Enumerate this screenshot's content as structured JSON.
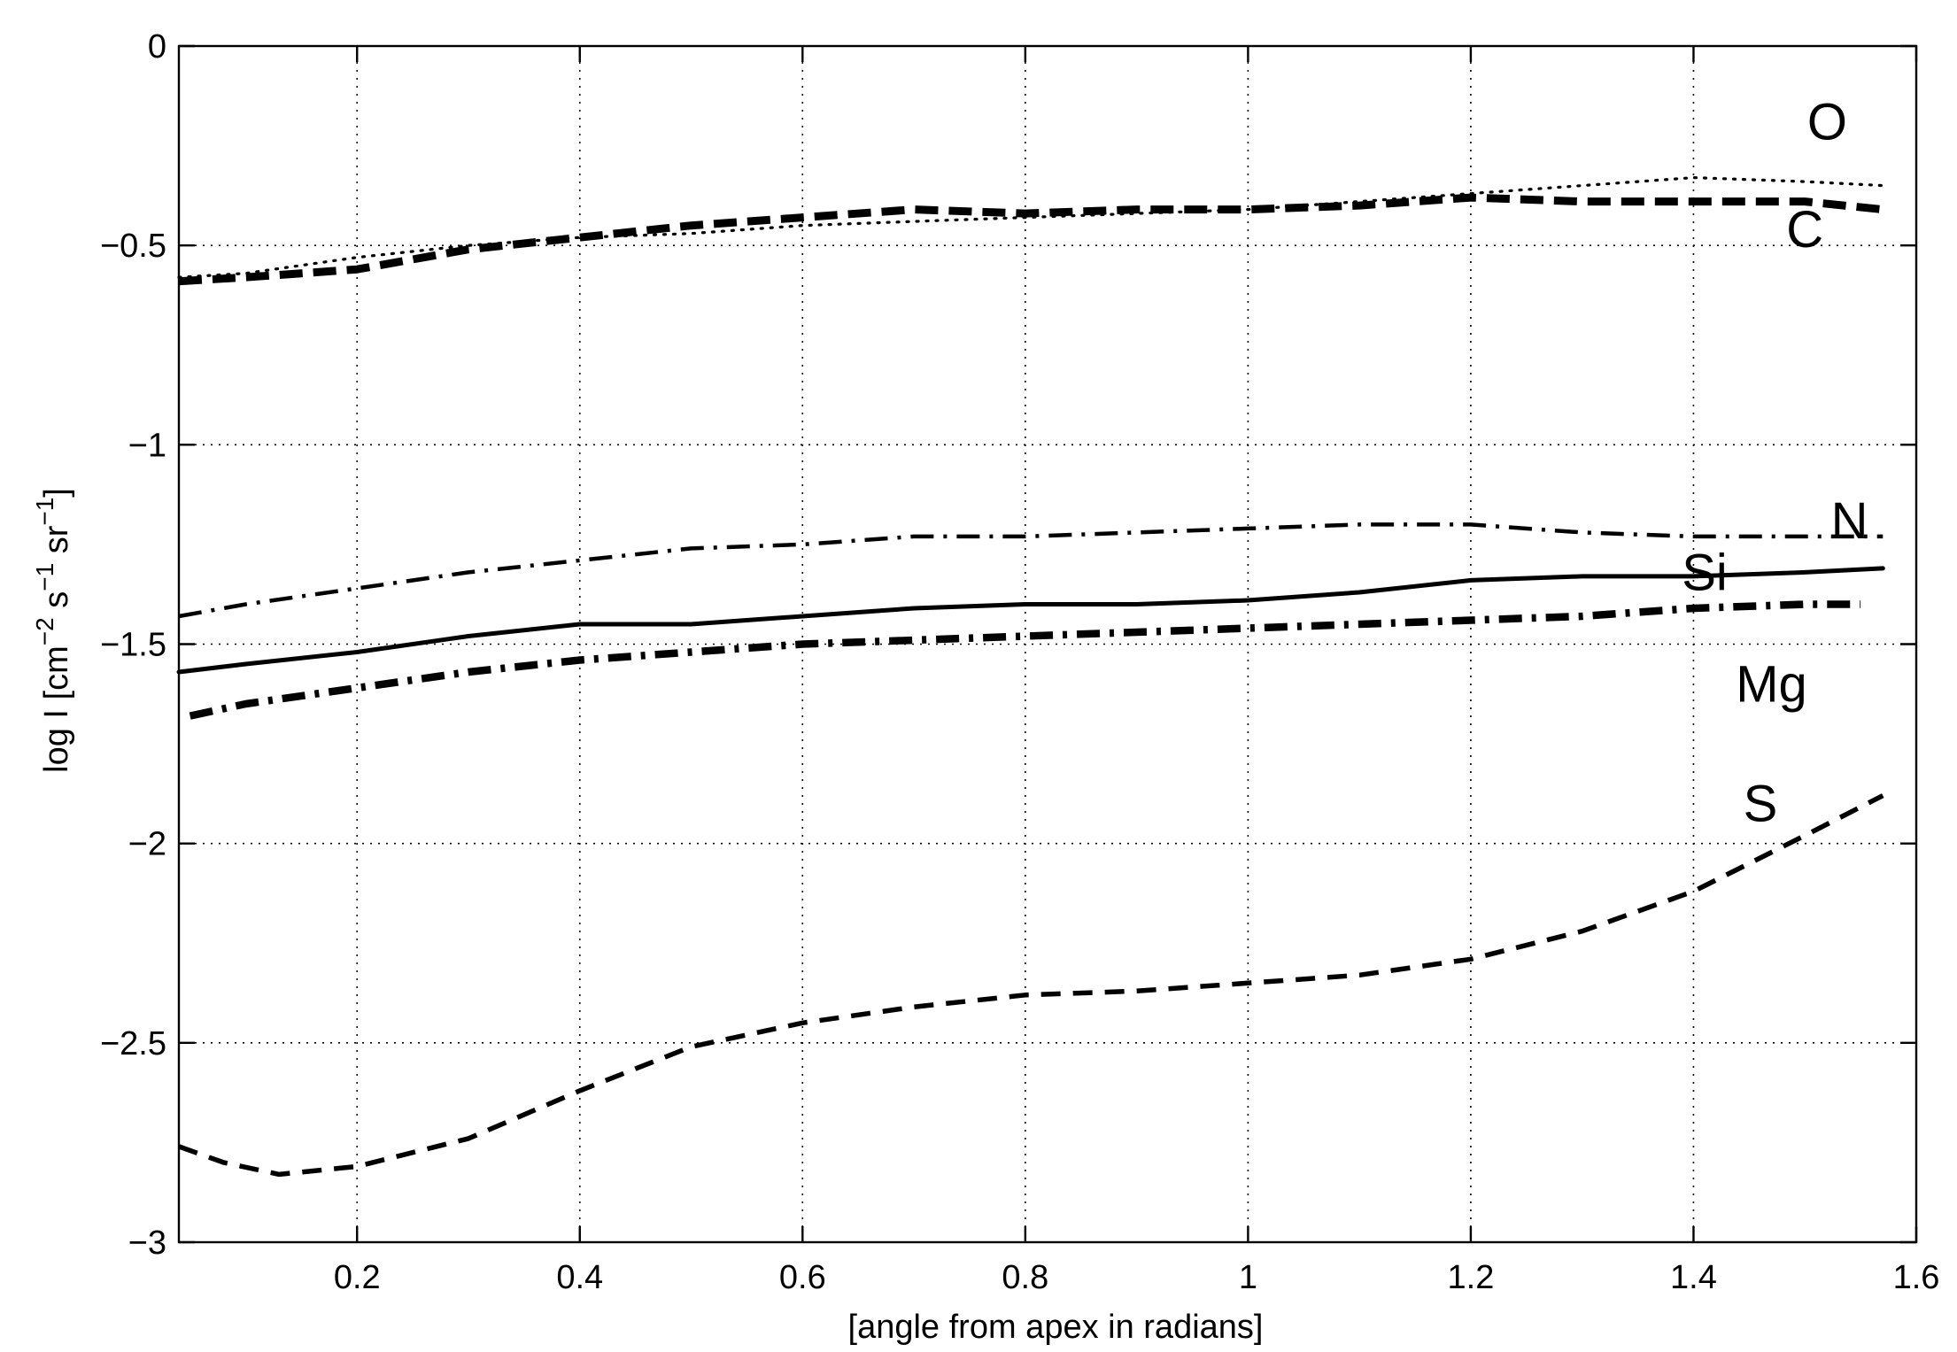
{
  "chart_data": {
    "type": "line",
    "title": "",
    "xlabel": "[angle from apex in radians]",
    "ylabel_parts": {
      "main": "log I  [cm",
      "exp1": "−2",
      "mid1": " s",
      "exp2": "−1",
      "mid2": " sr",
      "exp3": "−1",
      "end": "]"
    },
    "xlim": [
      0.04,
      1.6
    ],
    "ylim": [
      -3,
      0
    ],
    "grid": true,
    "x_ticks": [
      0.2,
      0.4,
      0.6,
      0.8,
      1,
      1.2,
      1.4,
      1.6
    ],
    "x_tick_labels": [
      "0.2",
      "0.4",
      "0.6",
      "0.8",
      "1",
      "1.2",
      "1.4",
      "1.6"
    ],
    "y_ticks": [
      0,
      -0.5,
      -1,
      -1.5,
      -2,
      -2.5,
      -3
    ],
    "y_tick_labels": [
      "0",
      "−0.5",
      "−1",
      "−1.5",
      "−2",
      "−2.5",
      "−3"
    ],
    "series": [
      {
        "name": "O",
        "style": "dotted",
        "label_at": [
          1.52,
          -0.19
        ],
        "points": [
          [
            0.04,
            -0.58
          ],
          [
            0.1,
            -0.57
          ],
          [
            0.2,
            -0.53
          ],
          [
            0.3,
            -0.5
          ],
          [
            0.4,
            -0.48
          ],
          [
            0.5,
            -0.47
          ],
          [
            0.6,
            -0.45
          ],
          [
            0.7,
            -0.44
          ],
          [
            0.8,
            -0.43
          ],
          [
            0.9,
            -0.42
          ],
          [
            1.0,
            -0.41
          ],
          [
            1.1,
            -0.39
          ],
          [
            1.2,
            -0.37
          ],
          [
            1.3,
            -0.35
          ],
          [
            1.4,
            -0.33
          ],
          [
            1.5,
            -0.34
          ],
          [
            1.57,
            -0.35
          ]
        ]
      },
      {
        "name": "C",
        "style": "thick-dashed",
        "label_at": [
          1.5,
          -0.46
        ],
        "points": [
          [
            0.04,
            -0.59
          ],
          [
            0.1,
            -0.58
          ],
          [
            0.2,
            -0.56
          ],
          [
            0.3,
            -0.51
          ],
          [
            0.4,
            -0.48
          ],
          [
            0.5,
            -0.45
          ],
          [
            0.6,
            -0.43
          ],
          [
            0.7,
            -0.41
          ],
          [
            0.8,
            -0.42
          ],
          [
            0.9,
            -0.41
          ],
          [
            1.0,
            -0.41
          ],
          [
            1.1,
            -0.4
          ],
          [
            1.2,
            -0.38
          ],
          [
            1.3,
            -0.39
          ],
          [
            1.4,
            -0.39
          ],
          [
            1.5,
            -0.39
          ],
          [
            1.57,
            -0.41
          ]
        ]
      },
      {
        "name": "N",
        "style": "dash-dot",
        "label_at": [
          1.54,
          -1.19
        ],
        "points": [
          [
            0.04,
            -1.43
          ],
          [
            0.1,
            -1.4
          ],
          [
            0.2,
            -1.36
          ],
          [
            0.3,
            -1.32
          ],
          [
            0.4,
            -1.29
          ],
          [
            0.5,
            -1.26
          ],
          [
            0.6,
            -1.25
          ],
          [
            0.7,
            -1.23
          ],
          [
            0.8,
            -1.23
          ],
          [
            0.9,
            -1.22
          ],
          [
            1.0,
            -1.21
          ],
          [
            1.1,
            -1.2
          ],
          [
            1.2,
            -1.2
          ],
          [
            1.3,
            -1.22
          ],
          [
            1.4,
            -1.23
          ],
          [
            1.5,
            -1.23
          ],
          [
            1.57,
            -1.23
          ]
        ]
      },
      {
        "name": "Si",
        "style": "solid",
        "label_at": [
          1.41,
          -1.32
        ],
        "points": [
          [
            0.04,
            -1.57
          ],
          [
            0.1,
            -1.55
          ],
          [
            0.2,
            -1.52
          ],
          [
            0.3,
            -1.48
          ],
          [
            0.4,
            -1.45
          ],
          [
            0.5,
            -1.45
          ],
          [
            0.6,
            -1.43
          ],
          [
            0.7,
            -1.41
          ],
          [
            0.8,
            -1.4
          ],
          [
            0.9,
            -1.4
          ],
          [
            1.0,
            -1.39
          ],
          [
            1.1,
            -1.37
          ],
          [
            1.2,
            -1.34
          ],
          [
            1.3,
            -1.33
          ],
          [
            1.4,
            -1.33
          ],
          [
            1.5,
            -1.32
          ],
          [
            1.57,
            -1.31
          ]
        ]
      },
      {
        "name": "Mg",
        "style": "thick-dash-dot",
        "label_at": [
          1.47,
          -1.6
        ],
        "points": [
          [
            0.05,
            -1.68
          ],
          [
            0.1,
            -1.65
          ],
          [
            0.2,
            -1.61
          ],
          [
            0.3,
            -1.57
          ],
          [
            0.4,
            -1.54
          ],
          [
            0.5,
            -1.52
          ],
          [
            0.6,
            -1.5
          ],
          [
            0.7,
            -1.49
          ],
          [
            0.8,
            -1.48
          ],
          [
            0.9,
            -1.47
          ],
          [
            1.0,
            -1.46
          ],
          [
            1.1,
            -1.45
          ],
          [
            1.2,
            -1.44
          ],
          [
            1.3,
            -1.43
          ],
          [
            1.4,
            -1.41
          ],
          [
            1.5,
            -1.4
          ],
          [
            1.55,
            -1.4
          ]
        ]
      },
      {
        "name": "S",
        "style": "dashed",
        "label_at": [
          1.46,
          -1.9
        ],
        "points": [
          [
            0.04,
            -2.76
          ],
          [
            0.08,
            -2.8
          ],
          [
            0.13,
            -2.83
          ],
          [
            0.2,
            -2.81
          ],
          [
            0.3,
            -2.74
          ],
          [
            0.4,
            -2.62
          ],
          [
            0.5,
            -2.51
          ],
          [
            0.6,
            -2.45
          ],
          [
            0.7,
            -2.41
          ],
          [
            0.8,
            -2.38
          ],
          [
            0.9,
            -2.37
          ],
          [
            1.0,
            -2.35
          ],
          [
            1.1,
            -2.33
          ],
          [
            1.2,
            -2.29
          ],
          [
            1.3,
            -2.22
          ],
          [
            1.4,
            -2.12
          ],
          [
            1.5,
            -1.98
          ],
          [
            1.57,
            -1.88
          ]
        ]
      }
    ]
  }
}
